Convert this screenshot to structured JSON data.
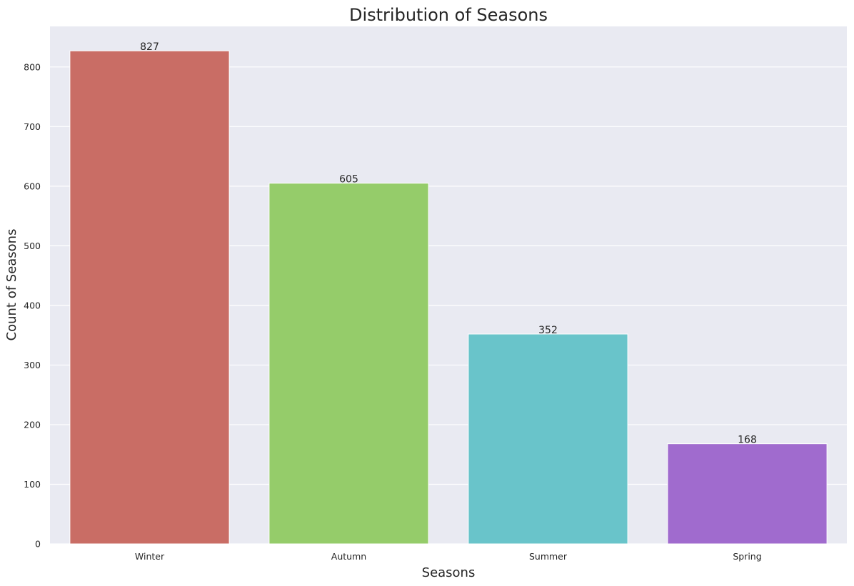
{
  "chart_data": {
    "type": "bar",
    "title": "Distribution of Seasons",
    "xlabel": "Seasons",
    "ylabel": "Count of Seasons",
    "categories": [
      "Winter",
      "Autumn",
      "Summer",
      "Spring"
    ],
    "values": [
      827,
      605,
      352,
      168
    ],
    "value_labels": [
      "827",
      "605",
      "352",
      "168"
    ],
    "colors": [
      "#c96d65",
      "#95cc6a",
      "#69c4ca",
      "#a06bce"
    ],
    "ylim": [
      0,
      868
    ],
    "yticks": [
      0,
      100,
      200,
      300,
      400,
      500,
      600,
      700,
      800
    ],
    "ytick_labels": [
      "0",
      "100",
      "200",
      "300",
      "400",
      "500",
      "600",
      "700",
      "800"
    ],
    "grid": true,
    "background": "#e9eaf2"
  }
}
